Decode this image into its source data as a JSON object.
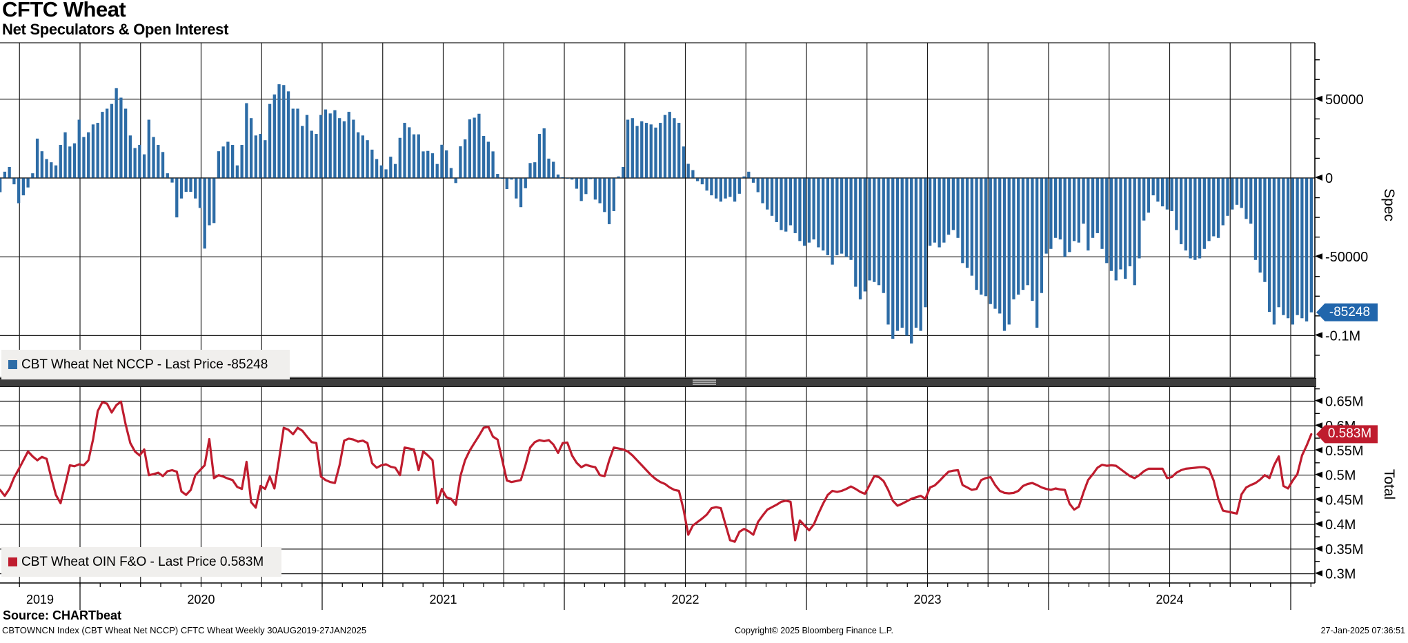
{
  "header": {
    "title": "CFTC Wheat",
    "subtitle": "Net Speculators & Open Interest"
  },
  "colors": {
    "spec_bar": "#2d6ca6",
    "spec_badge": "#2166ac",
    "oi_line": "#bf1c2e",
    "oi_badge": "#bf1c2e",
    "grid": "#1c1c1c",
    "legend_bg": "#f0efed",
    "divider": "#3e3e3e"
  },
  "top_panel": {
    "legend_label": "CBT Wheat Net NCCP - Last Price -85248",
    "axis_title": "Spec",
    "badge_label": "-85248",
    "y_ticks": [
      {
        "value": 50000,
        "label": "50000"
      },
      {
        "value": 0,
        "label": "0"
      },
      {
        "value": -50000,
        "label": "-50000"
      },
      {
        "value": -100000,
        "label": "-0.1M"
      }
    ]
  },
  "bottom_panel": {
    "legend_label": "CBT Wheat OIN F&O - Last Price 0.583M",
    "axis_title": "Total",
    "badge_label": "0.583M",
    "y_ticks": [
      {
        "value": 0.65,
        "label": "0.65M"
      },
      {
        "value": 0.6,
        "label": "0.6M"
      },
      {
        "value": 0.55,
        "label": "0.55M"
      },
      {
        "value": 0.5,
        "label": "0.5M"
      },
      {
        "value": 0.45,
        "label": "0.45M"
      },
      {
        "value": 0.4,
        "label": "0.4M"
      },
      {
        "value": 0.35,
        "label": "0.35M"
      },
      {
        "value": 0.3,
        "label": "0.3M"
      }
    ]
  },
  "x_axis": {
    "year_labels": [
      "2019",
      "2020",
      "2021",
      "2022",
      "2023",
      "2024"
    ]
  },
  "footer": {
    "source": "Source: CHARTbeat",
    "description": "CBTOWNCN Index (CBT Wheat Net NCCP) CFTC Wheat  Weekly 30AUG2019-27JAN2025",
    "copyright": "Copyright© 2025 Bloomberg Finance L.P.",
    "timestamp": "27-Jan-2025 07:36:51"
  },
  "chart_data": [
    {
      "type": "bar",
      "name": "CBT Wheat Net NCCP",
      "ylabel": "Spec",
      "frequency": "weekly",
      "x_start": "30AUG2019",
      "x_end": "27JAN2025",
      "last_price": -85248,
      "ylim": [
        -115000,
        86000
      ],
      "grid": true,
      "values": [
        -9000,
        4000,
        7000,
        -4000,
        -16000,
        -11000,
        -6000,
        3000,
        25000,
        17000,
        12000,
        10000,
        8000,
        21000,
        29000,
        20000,
        22000,
        37000,
        26000,
        29000,
        34000,
        35000,
        42000,
        44000,
        47000,
        57000,
        51000,
        44000,
        27000,
        19000,
        21000,
        15000,
        37000,
        26000,
        21000,
        16500,
        3000,
        -2900,
        -25000,
        -13000,
        -8800,
        -8800,
        -13000,
        -19000,
        -44800,
        -30000,
        -28600,
        17000,
        20000,
        23000,
        21000,
        8000,
        21000,
        47500,
        38000,
        27000,
        28000,
        24000,
        47000,
        53000,
        59500,
        59000,
        55000,
        44000,
        44000,
        33000,
        40000,
        30000,
        28000,
        40000,
        43500,
        41000,
        43000,
        38000,
        36000,
        42000,
        37000,
        29000,
        27000,
        24000,
        18000,
        12000,
        8000,
        5500,
        13500,
        8900,
        25500,
        35000,
        32200,
        27700,
        27700,
        16900,
        17200,
        15700,
        8900,
        21100,
        17500,
        6300,
        -3200,
        20100,
        24500,
        37200,
        38300,
        40800,
        26700,
        23000,
        16900,
        2600,
        -500,
        -7000,
        -1000,
        -13000,
        -18500,
        -6500,
        9500,
        10000,
        28000,
        31500,
        12300,
        10300,
        2200,
        500,
        -300,
        -1000,
        -6800,
        -14600,
        -10200,
        -700,
        -13700,
        -16000,
        -21600,
        -29300,
        -21000,
        1000,
        7000,
        37000,
        38000,
        33000,
        36000,
        35000,
        34000,
        32000,
        35000,
        40000,
        42000,
        38000,
        35000,
        20000,
        9000,
        5000,
        -2000,
        -4000,
        -8000,
        -11000,
        -13000,
        -15000,
        -13000,
        -12000,
        -15000,
        -10000,
        1000,
        4000,
        -3000,
        -9000,
        -16000,
        -20000,
        -24000,
        -28000,
        -33000,
        -34000,
        -30000,
        -35000,
        -40000,
        -43000,
        -41000,
        -39000,
        -44000,
        -46000,
        -49000,
        -55000,
        -49000,
        -48000,
        -50000,
        -52000,
        -69000,
        -77000,
        -72000,
        -65000,
        -66000,
        -68000,
        -73000,
        -93000,
        -102000,
        -97000,
        -95000,
        -100000,
        -105000,
        -95000,
        -97000,
        -82000,
        -43000,
        -41000,
        -44000,
        -41000,
        -36000,
        -33000,
        -38000,
        -54000,
        -57000,
        -62000,
        -71000,
        -74000,
        -75000,
        -80000,
        -83000,
        -86000,
        -97000,
        -93000,
        -77000,
        -74000,
        -71000,
        -68000,
        -78000,
        -95000,
        -73000,
        -48000,
        -45000,
        -38000,
        -39000,
        -50000,
        -47000,
        -40000,
        -41000,
        -29000,
        -46000,
        -38000,
        -35000,
        -45000,
        -54000,
        -59000,
        -65000,
        -58000,
        -64000,
        -56000,
        -68000,
        -51000,
        -27000,
        -22000,
        -11000,
        -15000,
        -18000,
        -20000,
        -21000,
        -33000,
        -42000,
        -46000,
        -51000,
        -52000,
        -51000,
        -45000,
        -40000,
        -37000,
        -38000,
        -30000,
        -24000,
        -20000,
        -17000,
        -19000,
        -26000,
        -29000,
        -52000,
        -60000,
        -66000,
        -85000,
        -93000,
        -82000,
        -87000,
        -89000,
        -93000,
        -87000,
        -89000,
        -91000,
        -85248
      ]
    },
    {
      "type": "line",
      "name": "CBT Wheat OIN F&O",
      "ylabel": "Total",
      "unit": "M contracts",
      "frequency": "weekly",
      "x_start": "30AUG2019",
      "x_end": "27JAN2025",
      "last_price": 0.583,
      "ylim": [
        0.28,
        0.67
      ],
      "grid": true,
      "values": [
        0.47,
        0.458,
        0.472,
        0.495,
        0.512,
        0.53,
        0.548,
        0.538,
        0.53,
        0.537,
        0.533,
        0.495,
        0.46,
        0.443,
        0.48,
        0.52,
        0.518,
        0.522,
        0.52,
        0.53,
        0.573,
        0.63,
        0.648,
        0.645,
        0.627,
        0.642,
        0.649,
        0.603,
        0.565,
        0.548,
        0.54,
        0.552,
        0.5,
        0.502,
        0.505,
        0.498,
        0.508,
        0.51,
        0.507,
        0.467,
        0.46,
        0.47,
        0.5,
        0.51,
        0.52,
        0.573,
        0.494,
        0.5,
        0.497,
        0.493,
        0.49,
        0.476,
        0.472,
        0.527,
        0.445,
        0.434,
        0.478,
        0.472,
        0.497,
        0.473,
        0.533,
        0.596,
        0.592,
        0.583,
        0.596,
        0.59,
        0.578,
        0.567,
        0.565,
        0.497,
        0.49,
        0.486,
        0.484,
        0.52,
        0.57,
        0.574,
        0.572,
        0.568,
        0.57,
        0.565,
        0.524,
        0.515,
        0.52,
        0.522,
        0.517,
        0.515,
        0.5,
        0.556,
        0.554,
        0.552,
        0.51,
        0.548,
        0.54,
        0.53,
        0.443,
        0.472,
        0.455,
        0.452,
        0.44,
        0.498,
        0.53,
        0.55,
        0.565,
        0.58,
        0.596,
        0.598,
        0.578,
        0.572,
        0.53,
        0.489,
        0.486,
        0.488,
        0.49,
        0.521,
        0.556,
        0.567,
        0.571,
        0.569,
        0.571,
        0.562,
        0.545,
        0.565,
        0.566,
        0.54,
        0.525,
        0.516,
        0.521,
        0.518,
        0.516,
        0.5,
        0.498,
        0.53,
        0.556,
        0.554,
        0.552,
        0.548,
        0.54,
        0.53,
        0.52,
        0.51,
        0.5,
        0.492,
        0.486,
        0.482,
        0.475,
        0.47,
        0.468,
        0.43,
        0.379,
        0.398,
        0.405,
        0.412,
        0.42,
        0.433,
        0.435,
        0.433,
        0.4,
        0.368,
        0.365,
        0.385,
        0.391,
        0.386,
        0.379,
        0.405,
        0.418,
        0.43,
        0.435,
        0.44,
        0.446,
        0.448,
        0.446,
        0.368,
        0.408,
        0.398,
        0.388,
        0.4,
        0.422,
        0.442,
        0.46,
        0.468,
        0.466,
        0.468,
        0.472,
        0.477,
        0.472,
        0.466,
        0.462,
        0.48,
        0.498,
        0.496,
        0.488,
        0.47,
        0.448,
        0.438,
        0.442,
        0.447,
        0.452,
        0.455,
        0.458,
        0.452,
        0.475,
        0.479,
        0.488,
        0.498,
        0.507,
        0.509,
        0.51,
        0.48,
        0.475,
        0.47,
        0.472,
        0.49,
        0.494,
        0.496,
        0.48,
        0.468,
        0.464,
        0.463,
        0.464,
        0.468,
        0.478,
        0.482,
        0.484,
        0.48,
        0.475,
        0.472,
        0.47,
        0.473,
        0.471,
        0.47,
        0.442,
        0.43,
        0.436,
        0.465,
        0.49,
        0.502,
        0.515,
        0.521,
        0.519,
        0.52,
        0.519,
        0.512,
        0.505,
        0.498,
        0.494,
        0.5,
        0.508,
        0.513,
        0.513,
        0.513,
        0.513,
        0.494,
        0.496,
        0.505,
        0.51,
        0.513,
        0.514,
        0.515,
        0.516,
        0.516,
        0.512,
        0.489,
        0.452,
        0.428,
        0.426,
        0.424,
        0.422,
        0.461,
        0.475,
        0.48,
        0.484,
        0.491,
        0.5,
        0.494,
        0.52,
        0.538,
        0.478,
        0.473,
        0.489,
        0.502,
        0.54,
        0.56,
        0.583
      ]
    }
  ]
}
